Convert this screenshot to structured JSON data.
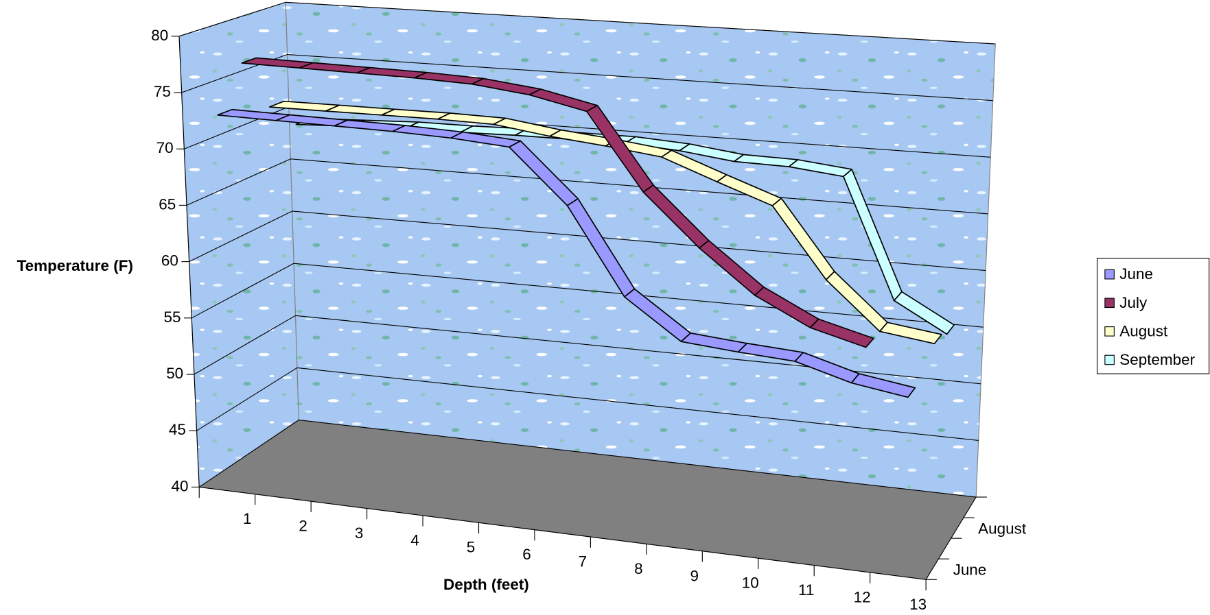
{
  "chart_data": {
    "type": "line",
    "y_label": "Temperature (F)",
    "x_label": "Depth (feet)",
    "categories": [
      "1",
      "2",
      "3",
      "4",
      "5",
      "6",
      "7",
      "8",
      "9",
      "10",
      "11",
      "12",
      "13"
    ],
    "series": [
      {
        "name": "June",
        "color": "#9999ff",
        "values": [
          73,
          72.9,
          72.8,
          72.7,
          72.5,
          72.1,
          67.5,
          60.2,
          56.9,
          56.5,
          56.2,
          54.9,
          54.2
        ]
      },
      {
        "name": "July",
        "color": "#993366",
        "values": [
          76.8,
          76.7,
          76.6,
          76.5,
          76.3,
          75.7,
          74.6,
          68,
          63.6,
          60,
          57.7,
          56.5,
          null
        ]
      },
      {
        "name": "August",
        "color": "#ffffcc",
        "values": [
          71.9,
          71.9,
          71.9,
          71.9,
          71.8,
          71.1,
          70.6,
          70,
          68.2,
          66.5,
          60.5,
          56.5,
          55.9
        ]
      },
      {
        "name": "September",
        "color": "#ccffff",
        "values": [
          69.3,
          69.5,
          69.7,
          69.7,
          69.8,
          69.8,
          69.8,
          69.5,
          68.9,
          68.8,
          68.3,
          57.8,
          55.3
        ]
      }
    ],
    "ylim": [
      40,
      80
    ],
    "yticks": [
      40,
      45,
      50,
      55,
      60,
      65,
      70,
      75,
      80
    ],
    "grid": true,
    "legend": "right"
  }
}
